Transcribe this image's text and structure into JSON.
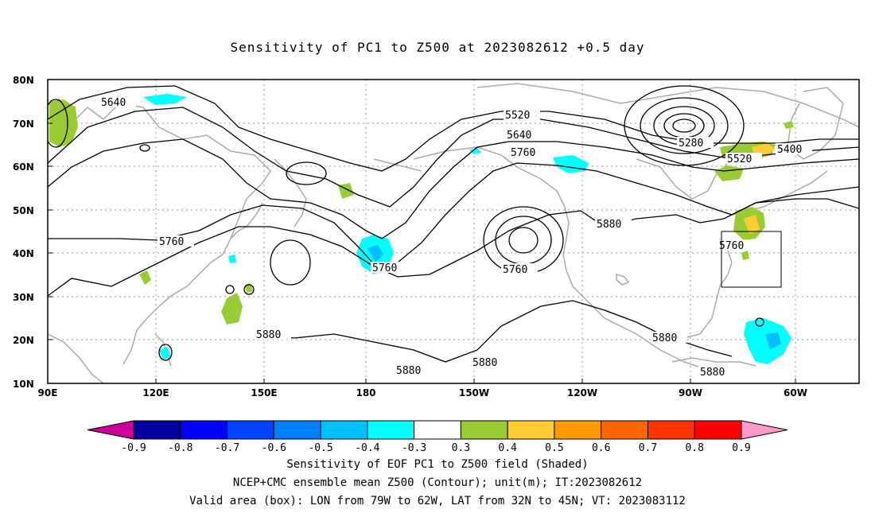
{
  "title": "Sensitivity of PC1 to Z500 at 2023082612 +0.5 day",
  "axes": {
    "y_ticks": [
      "80N",
      "70N",
      "60N",
      "50N",
      "40N",
      "30N",
      "20N",
      "10N"
    ],
    "x_ticks": [
      "90E",
      "120E",
      "150E",
      "180",
      "150W",
      "120W",
      "90W",
      "60W"
    ],
    "x_range": [
      "90E",
      "45W"
    ],
    "y_range": [
      "10N",
      "80N"
    ],
    "grid": true
  },
  "contour_labels": [
    {
      "id": "c1",
      "text": "5640"
    },
    {
      "id": "c2",
      "text": "5520"
    },
    {
      "id": "c3",
      "text": "5640"
    },
    {
      "id": "c4",
      "text": "5760"
    },
    {
      "id": "c5",
      "text": "5280"
    },
    {
      "id": "c6",
      "text": "5400"
    },
    {
      "id": "c7",
      "text": "5520"
    },
    {
      "id": "c8",
      "text": "5760"
    },
    {
      "id": "c9",
      "text": "5760"
    },
    {
      "id": "c10",
      "text": "5760"
    },
    {
      "id": "c11",
      "text": "5880"
    },
    {
      "id": "c12",
      "text": "5760"
    },
    {
      "id": "c13",
      "text": "5880"
    },
    {
      "id": "c14",
      "text": "5880"
    },
    {
      "id": "c15",
      "text": "5880"
    },
    {
      "id": "c16",
      "text": "5880"
    },
    {
      "id": "c17",
      "text": "5880"
    }
  ],
  "colorbar": {
    "labels": [
      "-0.9",
      "-0.8",
      "-0.7",
      "-0.6",
      "-0.5",
      "-0.4",
      "-0.3",
      "0.3",
      "0.4",
      "0.5",
      "0.6",
      "0.7",
      "0.8",
      "0.9"
    ],
    "colors": [
      "#cc0099",
      "#0000a0",
      "#0000ff",
      "#0044ff",
      "#0080ff",
      "#00c0ff",
      "#00ffff",
      "#ffffff",
      "#99cc33",
      "#ffcc33",
      "#ff9900",
      "#ff6600",
      "#ff3300",
      "#ff0000",
      "#ff99cc"
    ]
  },
  "valid_box": {
    "lon": [
      "79W",
      "62W"
    ],
    "lat": [
      "32N",
      "45N"
    ]
  },
  "captions": {
    "line1": "Sensitivity of EOF PC1 to Z500 field (Shaded)",
    "line2": "NCEP+CMC ensemble mean Z500 (Contour); unit(m); IT:2023082612",
    "line3": "Valid area (box): LON from 79W to 62W, LAT from 32N to 45N; VT: 2023083112"
  }
}
